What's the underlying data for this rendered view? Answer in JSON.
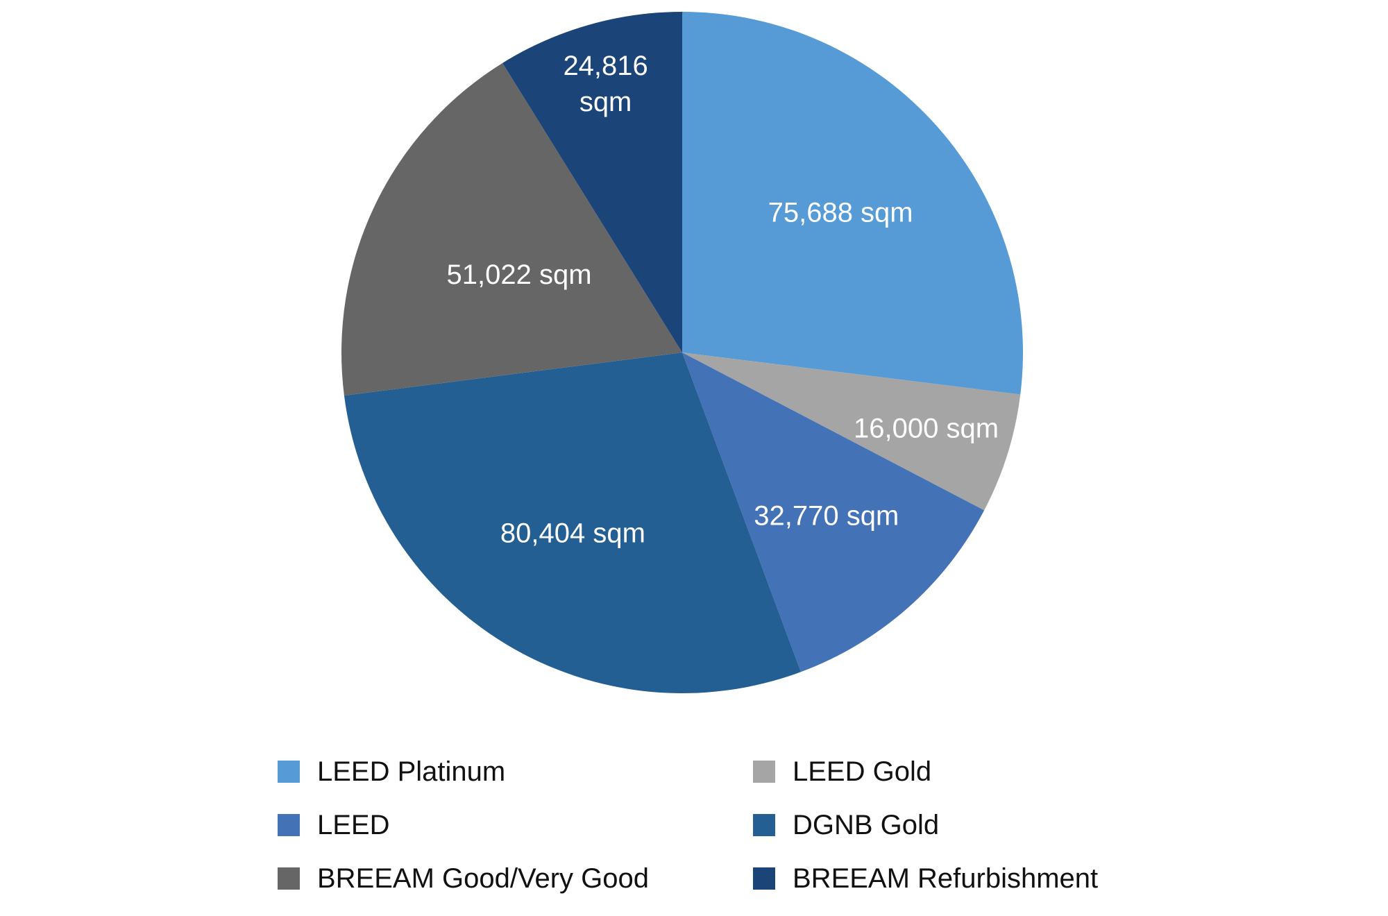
{
  "chart_data": {
    "type": "pie",
    "values": [
      75688,
      16000,
      32770,
      80404,
      51022,
      24816
    ],
    "labels": [
      "LEED Platinum",
      "LEED Gold",
      "LEED",
      "DGNB Gold",
      "BREEAM Good/Very Good",
      "BREEAM Refurbishment"
    ],
    "data_labels": [
      [
        "75,688 sqm"
      ],
      [
        "16,000 sqm"
      ],
      [
        "32,770 sqm"
      ],
      [
        "80,404 sqm"
      ],
      [
        "51,022 sqm"
      ],
      [
        "24,816",
        "sqm"
      ]
    ],
    "colors": [
      "#569BD5",
      "#A5A5A5",
      "#4472B7",
      "#235F92",
      "#666666",
      "#1B4479"
    ],
    "start": "12 o'clock",
    "direction": "clockwise",
    "legend_position": "bottom"
  },
  "legend": {
    "items": [
      {
        "label": "LEED Platinum",
        "color": "#569BD5"
      },
      {
        "label": "LEED Gold",
        "color": "#A5A5A5"
      },
      {
        "label": "LEED",
        "color": "#4472B7"
      },
      {
        "label": "DGNB Gold",
        "color": "#235F92"
      },
      {
        "label": "BREEAM Good/Very Good",
        "color": "#666666"
      },
      {
        "label": "BREEAM Refurbishment",
        "color": "#1B4479"
      }
    ]
  }
}
